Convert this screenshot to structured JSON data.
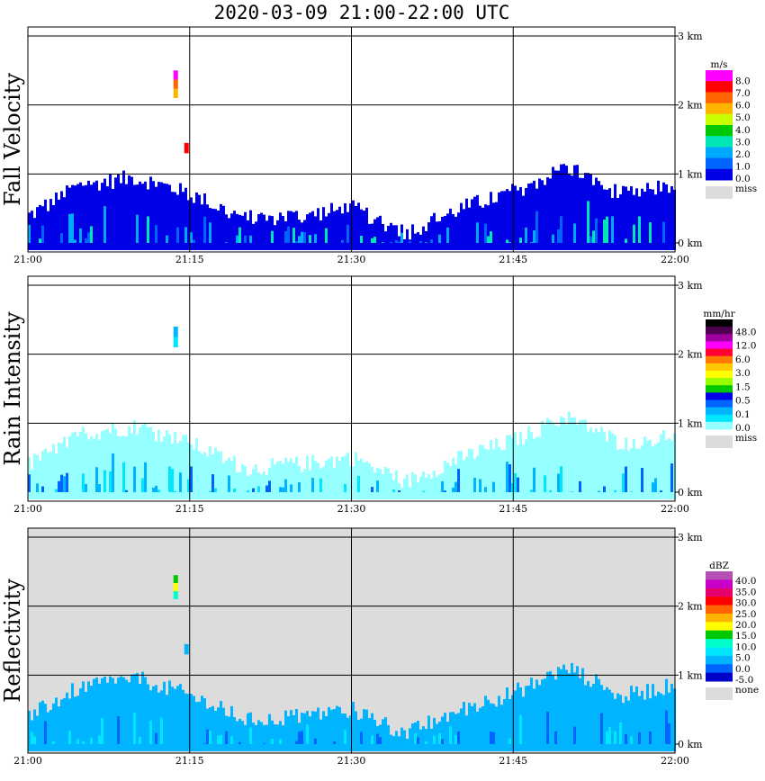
{
  "title": "2020-03-09   21:00-22:00 UTC",
  "colors": {
    "panel_missing_background": "#dcdcdc",
    "grid": "#000000",
    "missing": "#dcdcdc"
  },
  "chart_data": [
    {
      "type": "heatmap",
      "ylabel": "Fall Velocity",
      "x_ticks": [
        "21:00",
        "21:15",
        "21:30",
        "21:45",
        "22:00"
      ],
      "y_ticks": [
        "0 km",
        "1 km",
        "2 km",
        "3 km"
      ],
      "xlim": [
        "21:00",
        "22:00"
      ],
      "ylim_km": [
        0,
        3.5
      ],
      "grid": true,
      "background": "white",
      "colorbar": {
        "unit": "m/s",
        "colors": [
          "#ff00ff",
          "#ff0000",
          "#ff6400",
          "#ffb400",
          "#c8ff00",
          "#00c800",
          "#00e6b4",
          "#00aaff",
          "#0064ff",
          "#0000e6"
        ],
        "labels": [
          "8.0",
          "7.0",
          "6.0",
          "5.0",
          "4.0",
          "3.0",
          "2.0",
          "1.0",
          "0.0"
        ],
        "missing_label": "miss"
      },
      "echo_top_km": [
        0.4,
        0.85,
        0.95,
        0.7,
        0.35,
        0.4,
        0.5,
        0.15,
        0.5,
        0.75,
        1.1,
        0.7,
        0.85
      ],
      "echo_color": "#0000e6",
      "features": [
        {
          "time": "21:14",
          "height_km": [
            2.1,
            2.5
          ],
          "colors": [
            "#ff00ff",
            "#ff6400",
            "#ffb400"
          ]
        },
        {
          "time": "21:15",
          "height_km": [
            1.3,
            1.45
          ],
          "colors": [
            "#ff0000"
          ]
        }
      ]
    },
    {
      "type": "heatmap",
      "ylabel": "Rain Intensity",
      "x_ticks": [
        "21:00",
        "21:15",
        "21:30",
        "21:45",
        "22:00"
      ],
      "y_ticks": [
        "0 km",
        "1 km",
        "2 km",
        "3 km"
      ],
      "xlim": [
        "21:00",
        "22:00"
      ],
      "ylim_km": [
        0,
        3.5
      ],
      "grid": true,
      "background": "white",
      "colorbar": {
        "unit": "mm/hr",
        "colors": [
          "#000000",
          "#500050",
          "#a000a0",
          "#ff00ff",
          "#ff0032",
          "#ff7800",
          "#ffc800",
          "#ffff00",
          "#96ff00",
          "#00c800",
          "#0000e6",
          "#0064ff",
          "#00b4ff",
          "#00e6ff",
          "#96ffff"
        ],
        "labels": [
          "48.0",
          "12.0",
          "6.0",
          "3.0",
          "1.5",
          "0.5",
          "0.1",
          "0.0"
        ],
        "missing_label": "miss"
      },
      "echo_top_km": [
        0.4,
        0.85,
        0.95,
        0.7,
        0.35,
        0.4,
        0.5,
        0.15,
        0.5,
        0.75,
        1.1,
        0.7,
        0.85
      ],
      "echo_color": "#96ffff",
      "features": [
        {
          "time": "21:14",
          "height_km": [
            2.1,
            2.4
          ],
          "colors": [
            "#00b4ff",
            "#00e6ff"
          ]
        }
      ]
    },
    {
      "type": "heatmap",
      "ylabel": "Reflectivity",
      "x_ticks": [
        "21:00",
        "21:15",
        "21:30",
        "21:45",
        "22:00"
      ],
      "y_ticks": [
        "0 km",
        "1 km",
        "2 km",
        "3 km"
      ],
      "xlim": [
        "21:00",
        "22:00"
      ],
      "ylim_km": [
        0,
        3.5
      ],
      "grid": true,
      "background": "gray",
      "colorbar": {
        "unit": "dBZ",
        "colors": [
          "#b450b4",
          "#c800c8",
          "#e6006e",
          "#ff0000",
          "#ff6400",
          "#ffb400",
          "#ffff00",
          "#00c800",
          "#00ffc8",
          "#00e6ff",
          "#00b4ff",
          "#0064ff",
          "#0000c8"
        ],
        "labels": [
          "40.0",
          "35.0",
          "30.0",
          "25.0",
          "20.0",
          "15.0",
          "10.0",
          "5.0",
          "0.0",
          "-5.0"
        ],
        "missing_label": "none"
      },
      "echo_top_km": [
        0.4,
        0.85,
        0.95,
        0.7,
        0.35,
        0.4,
        0.5,
        0.15,
        0.5,
        0.75,
        1.1,
        0.7,
        0.85
      ],
      "echo_color": "#00b4ff",
      "features": [
        {
          "time": "21:14",
          "height_km": [
            2.1,
            2.45
          ],
          "colors": [
            "#00c800",
            "#ffff00",
            "#00ffc8"
          ]
        },
        {
          "time": "21:15",
          "height_km": [
            1.3,
            1.45
          ],
          "colors": [
            "#00b4ff"
          ]
        }
      ]
    }
  ]
}
